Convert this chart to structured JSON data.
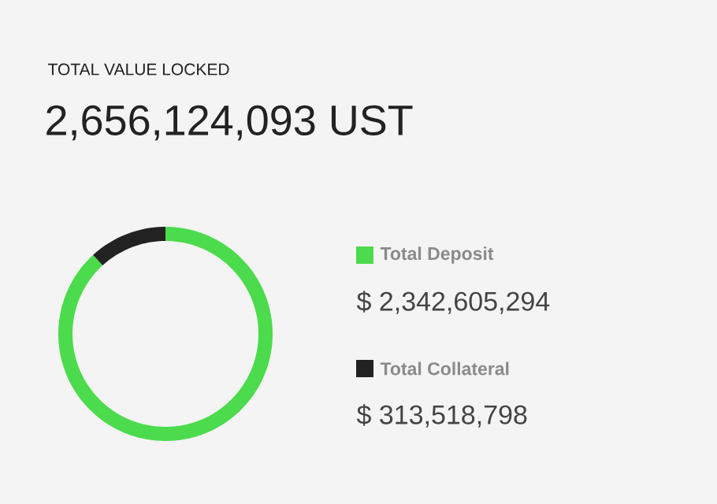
{
  "chart_data": {
    "type": "donut",
    "title": "TOTAL VALUE LOCKED",
    "subtitle": "2,656,124,093 UST",
    "categories": [
      "Total Deposit",
      "Total Collateral"
    ],
    "values": [
      2342605294,
      313518798
    ],
    "colors": [
      "#4cdb4c",
      "#222222"
    ],
    "value_labels": [
      "$ 2,342,605,294",
      "$ 313,518,798"
    ],
    "legend": "right"
  }
}
